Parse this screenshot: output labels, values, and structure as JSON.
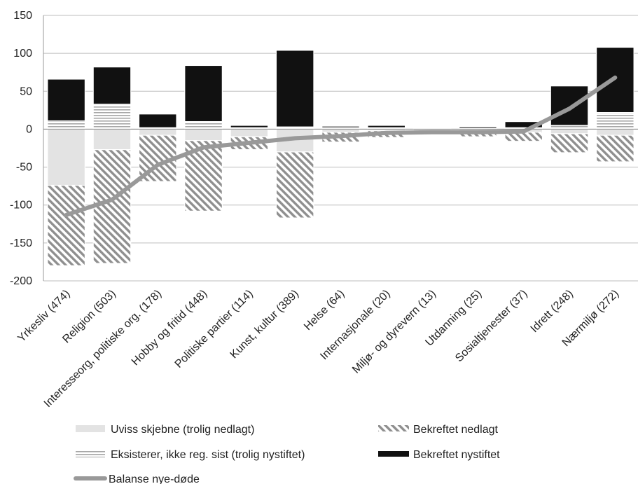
{
  "chart_data": {
    "type": "bar",
    "stacked": true,
    "categories": [
      "Yrkesliv (474)",
      "Religion (503)",
      "Interesseorg, politiske org. (178)",
      "Hobby og fritid (448)",
      "Politiske partier (114)",
      "Kunst, kultur (389)",
      "Helse (64)",
      "Internasjonale (20)",
      "Miljø- og dyrevern (13)",
      "Utdanning (25)",
      "Sosialtjenester (37)",
      "Idrett (248)",
      "Nærmiljø (272)"
    ],
    "ylim": [
      -200,
      150
    ],
    "yticks": [
      150,
      100,
      50,
      0,
      -50,
      -100,
      -150,
      -200
    ],
    "grid": true,
    "legend_position": "bottom",
    "series": [
      {
        "name": "Uviss skjebne (trolig nedlagt)",
        "kind": "bar",
        "pattern": "light-gray",
        "color": "#e3e3e3",
        "values": [
          -74,
          -27,
          -8,
          -15,
          -10,
          -30,
          -4,
          -2,
          -2,
          -2,
          -4,
          -6,
          -8
        ]
      },
      {
        "name": "Bekreftet nedlagt",
        "kind": "bar",
        "pattern": "diagonal-hatch",
        "color": "#8a8a8a",
        "values": [
          -106,
          -150,
          -61,
          -93,
          -17,
          -87,
          -13,
          -9,
          -5,
          -8,
          -12,
          -25,
          -35
        ]
      },
      {
        "name": "Eksisterer, ikke reg. sist (trolig nystiftet)",
        "kind": "bar",
        "pattern": "horizontal-lines",
        "color": "#a0a0a0",
        "values": [
          11,
          33,
          2,
          10,
          2,
          3,
          2,
          2,
          1,
          1,
          2,
          5,
          22
        ]
      },
      {
        "name": "Bekreftet nystiftet",
        "kind": "bar",
        "pattern": "solid",
        "color": "#111111",
        "values": [
          55,
          49,
          18,
          74,
          3,
          101,
          2,
          3,
          0,
          2,
          8,
          52,
          86
        ]
      },
      {
        "name": "Balanse nye-døde",
        "kind": "line",
        "color": "#999999",
        "values": [
          -113,
          -93,
          -47,
          -24,
          -18,
          -12,
          -9,
          -5,
          -4,
          -4,
          -3,
          27,
          68
        ]
      }
    ]
  }
}
